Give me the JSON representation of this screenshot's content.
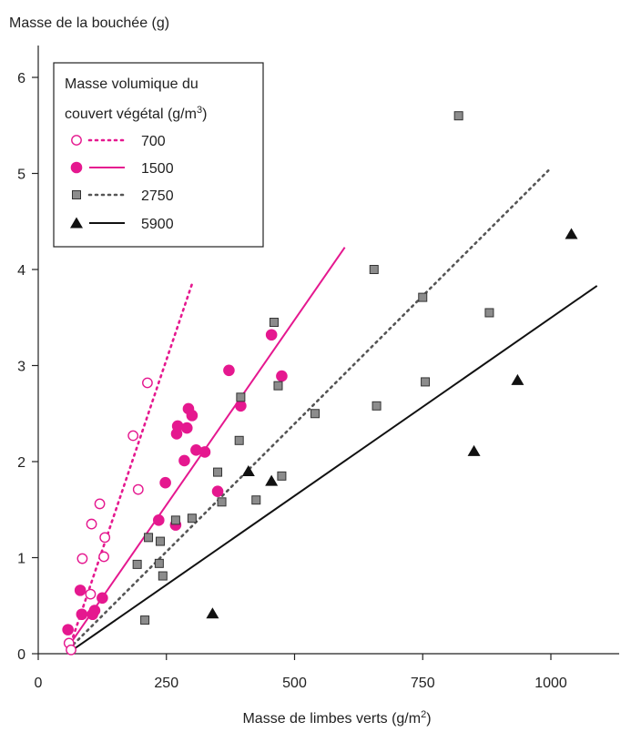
{
  "chart_data": {
    "type": "scatter",
    "ylabel": "Masse de la bouchée (g)",
    "xlabel_main": "Masse de limbes verts (g/m",
    "xlabel_sup": "2",
    "xlabel_tail": ")",
    "xlim": [
      0,
      1150
    ],
    "ylim": [
      0,
      6.2
    ],
    "x_ticks": [
      0,
      250,
      500,
      750,
      1000
    ],
    "y_ticks": [
      0,
      1,
      2,
      3,
      4,
      5,
      6
    ],
    "grid": false,
    "legend": {
      "position": "top-left",
      "title_line1": "Masse volumique du",
      "title_line2_main": "couvert végétal (g/m",
      "title_line2_sup": "3",
      "title_line2_tail": ")"
    },
    "series": [
      {
        "name": "700",
        "color": "#e5188f",
        "marker": "circle-open",
        "line": "dotted",
        "fit": [
          [
            60,
            0.05
          ],
          [
            300,
            3.85
          ]
        ],
        "points": [
          [
            60,
            0.11
          ],
          [
            64,
            0.04
          ],
          [
            102,
            0.62
          ],
          [
            104,
            1.35
          ],
          [
            86,
            0.99
          ],
          [
            120,
            1.56
          ],
          [
            128,
            1.01
          ],
          [
            130,
            1.21
          ],
          [
            185,
            2.27
          ],
          [
            195,
            1.71
          ],
          [
            213,
            2.82
          ]
        ]
      },
      {
        "name": "1500",
        "color": "#e5188f",
        "marker": "circle-filled",
        "line": "solid",
        "fit": [
          [
            62,
            0.1
          ],
          [
            598,
            4.23
          ]
        ],
        "points": [
          [
            58,
            0.25
          ],
          [
            82,
            0.66
          ],
          [
            85,
            0.41
          ],
          [
            106,
            0.41
          ],
          [
            110,
            0.45
          ],
          [
            125,
            0.58
          ],
          [
            235,
            1.39
          ],
          [
            248,
            1.78
          ],
          [
            268,
            1.34
          ],
          [
            270,
            2.29
          ],
          [
            272,
            2.37
          ],
          [
            285,
            2.01
          ],
          [
            290,
            2.35
          ],
          [
            293,
            2.55
          ],
          [
            300,
            2.48
          ],
          [
            308,
            2.12
          ],
          [
            325,
            2.1
          ],
          [
            350,
            1.69
          ],
          [
            372,
            2.95
          ],
          [
            395,
            2.58
          ],
          [
            455,
            3.32
          ],
          [
            475,
            2.89
          ]
        ]
      },
      {
        "name": "2750",
        "color": "#555555",
        "marker": "square",
        "line": "dotted",
        "fit": [
          [
            60,
            0.05
          ],
          [
            995,
            5.03
          ]
        ],
        "points": [
          [
            193,
            0.93
          ],
          [
            208,
            0.35
          ],
          [
            215,
            1.21
          ],
          [
            236,
            0.94
          ],
          [
            238,
            1.17
          ],
          [
            243,
            0.81
          ],
          [
            268,
            1.39
          ],
          [
            300,
            1.41
          ],
          [
            350,
            1.89
          ],
          [
            358,
            1.58
          ],
          [
            392,
            2.22
          ],
          [
            395,
            2.67
          ],
          [
            425,
            1.6
          ],
          [
            460,
            3.45
          ],
          [
            468,
            2.79
          ],
          [
            475,
            1.85
          ],
          [
            540,
            2.5
          ],
          [
            655,
            4.0
          ],
          [
            660,
            2.58
          ],
          [
            750,
            3.71
          ],
          [
            755,
            2.83
          ],
          [
            820,
            5.6
          ],
          [
            880,
            3.55
          ]
        ]
      },
      {
        "name": "5900",
        "color": "#111111",
        "marker": "triangle",
        "line": "solid",
        "fit": [
          [
            70,
            0.05
          ],
          [
            1090,
            3.83
          ]
        ],
        "points": [
          [
            340,
            0.42
          ],
          [
            410,
            1.9
          ],
          [
            455,
            1.8
          ],
          [
            850,
            2.11
          ],
          [
            935,
            2.85
          ],
          [
            1040,
            4.37
          ]
        ]
      }
    ]
  }
}
